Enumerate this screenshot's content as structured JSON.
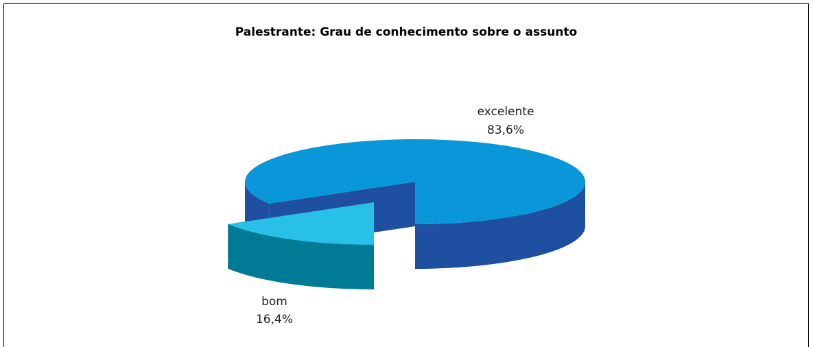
{
  "chart_data": {
    "type": "pie",
    "title": "Palestrante: Grau de conhecimento sobre o assunto",
    "categories": [
      "excelente",
      "bom"
    ],
    "values": [
      83.6,
      16.4
    ],
    "value_labels": [
      "83,6%",
      "16,4%"
    ],
    "colors": [
      "#0a97d9",
      "#29c0e8"
    ],
    "side_colors": [
      "#1f4fa0",
      "#007a95"
    ]
  }
}
